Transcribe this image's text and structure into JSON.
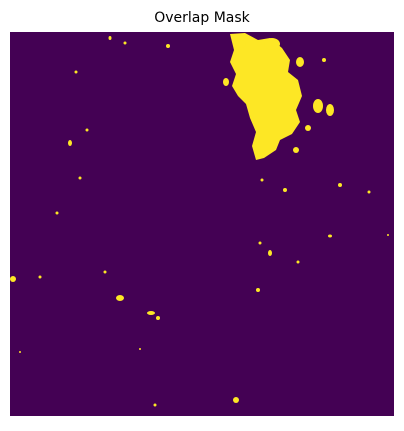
{
  "title": "Overlap Mask"
}
